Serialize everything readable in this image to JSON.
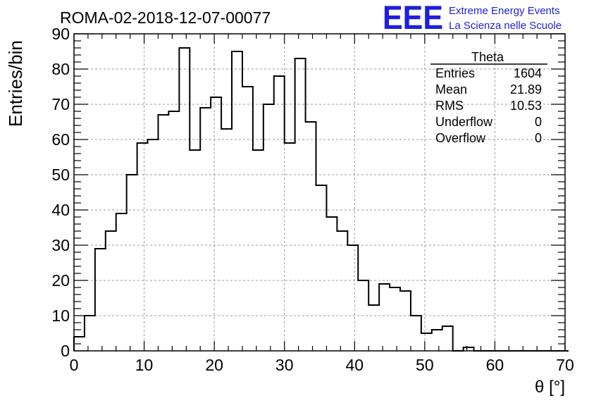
{
  "header": {
    "run_title": "ROMA-02-2018-12-07-00077",
    "logo_text": "EEE",
    "org_line1": "Extreme Energy Events",
    "org_line2": "La Scienza nelle Scuole",
    "brand_color": "#1e1edc"
  },
  "stats": {
    "title": "Theta",
    "rows": [
      {
        "label": "Entries",
        "value": "1604"
      },
      {
        "label": "Mean",
        "value": "21.89"
      },
      {
        "label": "RMS",
        "value": "10.53"
      },
      {
        "label": "Underflow",
        "value": "0"
      },
      {
        "label": "Overflow",
        "value": "0"
      }
    ]
  },
  "chart_data": {
    "type": "bar",
    "style": "step-histogram",
    "xlabel": "θ [°]",
    "ylabel": "Entries/bin",
    "xlim": [
      0,
      70
    ],
    "ylim": [
      0,
      90
    ],
    "bin_width": 1.5,
    "bin_start": 0,
    "xticks": [
      0,
      10,
      20,
      30,
      40,
      50,
      60,
      70
    ],
    "yticks": [
      0,
      10,
      20,
      30,
      40,
      50,
      60,
      70,
      80,
      90
    ],
    "grid": true,
    "values": [
      4,
      10,
      29,
      34,
      39,
      50,
      59,
      60,
      67,
      68,
      86,
      57,
      69,
      72,
      63,
      85,
      75,
      57,
      70,
      78,
      59,
      83,
      65,
      47,
      38,
      34,
      30,
      20,
      13,
      19,
      18,
      17,
      10,
      5,
      6,
      7,
      0,
      1,
      0,
      0,
      0,
      0,
      0,
      0,
      0,
      0,
      0
    ]
  }
}
